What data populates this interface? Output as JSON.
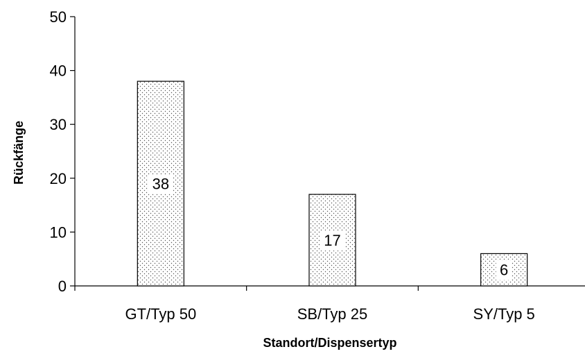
{
  "chart_data": {
    "type": "bar",
    "categories": [
      "GT/Typ 50",
      "SB/Typ 25",
      "SY/Typ 5"
    ],
    "values": [
      38,
      17,
      6
    ],
    "data_labels": [
      "38",
      "17",
      "6"
    ],
    "title": "",
    "xlabel": "Standort/Dispensertyp",
    "ylabel": "Rückfänge",
    "ylim": [
      0,
      50
    ],
    "yticks": [
      "0",
      "10",
      "20",
      "30",
      "40",
      "50"
    ],
    "grid": false,
    "bar_fill": "dotted",
    "bar_color": "#ffffff",
    "line_color": "#000000"
  }
}
